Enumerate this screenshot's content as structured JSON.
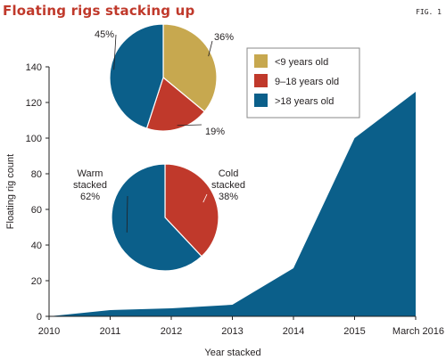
{
  "header": {
    "title": "Floating rigs stacking up",
    "fig_label": "FIG. 1"
  },
  "colors": {
    "title": "#c0392b",
    "area": "#0b5f8a",
    "axis": "#222222",
    "text": "#231f20",
    "legend_border": "#8a8a8a",
    "lt9": "#c7a84f",
    "m9_18": "#c0392b",
    "gt18": "#0b5f8a"
  },
  "chart_data": [
    {
      "type": "area",
      "title": "",
      "xlabel": "Year stacked",
      "ylabel": "Floating rig count",
      "x": [
        "2010",
        "2011",
        "2012",
        "2013",
        "2014",
        "2015",
        "March 2016"
      ],
      "series": [
        {
          "values": [
            0,
            3.5,
            4.5,
            6.5,
            27,
            100,
            126
          ]
        }
      ],
      "ylim": [
        0,
        140
      ],
      "yticks": [
        0,
        20,
        40,
        60,
        80,
        100,
        120,
        140
      ],
      "grid": false
    },
    {
      "type": "pie",
      "slices": [
        {
          "label": "<9 years old",
          "value": 36,
          "display": "36%",
          "color": "#c7a84f"
        },
        {
          "label": "9–18 years old",
          "value": 19,
          "display": "19%",
          "color": "#c0392b"
        },
        {
          "label": ">18 years old",
          "value": 45,
          "display": "45%",
          "color": "#0b5f8a"
        }
      ],
      "legend": "right"
    },
    {
      "type": "pie",
      "slices": [
        {
          "label_lines": [
            "Cold",
            "stacked",
            "38%"
          ],
          "value": 38,
          "color": "#c0392b"
        },
        {
          "label_lines": [
            "Warm",
            "stacked",
            "62%"
          ],
          "value": 62,
          "color": "#0b5f8a"
        }
      ]
    }
  ]
}
